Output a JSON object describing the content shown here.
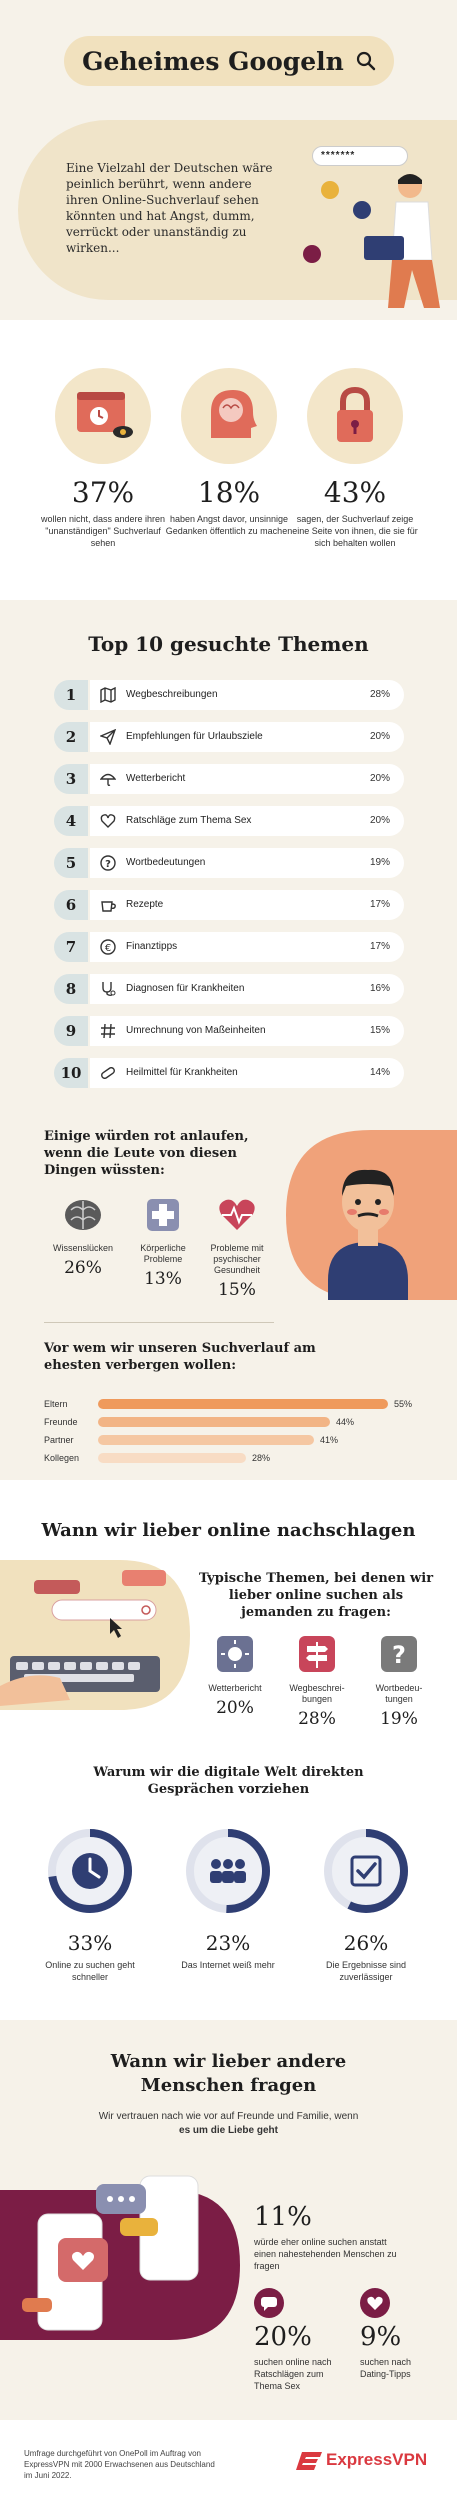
{
  "header": {
    "title": "Geheimes Googeln",
    "search_dots": "*******",
    "intro": "Eine Vielzahl der Deutschen wäre peinlich berührt, wenn andere ihren Online-Suchverlauf sehen könnten und hat Angst, dumm, verrückt oder unanständig zu wirken..."
  },
  "stats": [
    {
      "value": "37%",
      "text": "wollen nicht, dass andere ihren \"unanständigen\" Suchverlauf sehen",
      "icon": "browser-eye-icon"
    },
    {
      "value": "18%",
      "text": "haben Angst davor, unsinnige Gedanken öffentlich zu machen",
      "icon": "head-brain-icon"
    },
    {
      "value": "43%",
      "text": "sagen, der Suchverlauf zeige eine Seite von ihnen, die sie für sich behalten wollen",
      "icon": "padlock-icon"
    }
  ],
  "top10": {
    "title": "Top 10 gesuchte Themen",
    "items": [
      {
        "rank": "1",
        "label": "Wegbeschreibungen",
        "value": "28%",
        "icon": "map-icon"
      },
      {
        "rank": "2",
        "label": "Empfehlungen für Urlaubsziele",
        "value": "20%",
        "icon": "paper-plane-icon"
      },
      {
        "rank": "3",
        "label": "Wetterbericht",
        "value": "20%",
        "icon": "umbrella-icon"
      },
      {
        "rank": "4",
        "label": "Ratschläge zum Thema Sex",
        "value": "20%",
        "icon": "heart-icon"
      },
      {
        "rank": "5",
        "label": "Wortbedeutungen",
        "value": "19%",
        "icon": "question-icon"
      },
      {
        "rank": "6",
        "label": "Rezepte",
        "value": "17%",
        "icon": "cup-icon"
      },
      {
        "rank": "7",
        "label": "Finanztipps",
        "value": "17%",
        "icon": "euro-icon"
      },
      {
        "rank": "8",
        "label": "Diagnosen für Krankheiten",
        "value": "16%",
        "icon": "stethoscope-icon"
      },
      {
        "rank": "9",
        "label": "Umrechnung von Maßeinheiten",
        "value": "15%",
        "icon": "hash-icon"
      },
      {
        "rank": "10",
        "label": "Heilmittel für Krankheiten",
        "value": "14%",
        "icon": "pill-icon"
      }
    ]
  },
  "blush": {
    "title": "Einige würden rot anlaufen, wenn die Leute von diesen Dingen wüssten:",
    "items": [
      {
        "label": "Wissenslücken",
        "value": "26%",
        "icon": "brain-icon"
      },
      {
        "label": "Körperliche Probleme",
        "value": "13%",
        "icon": "medical-cross-icon"
      },
      {
        "label": "Probleme mit psychischer Gesundheit",
        "value": "15%",
        "icon": "heartbeat-icon"
      }
    ]
  },
  "hide": {
    "title": "Vor wem wir unseren Suchverlauf am ehesten verbergen wollen:",
    "rows": [
      {
        "label": "Eltern",
        "value": "55%",
        "pct": 55,
        "color": "#ef9a5c"
      },
      {
        "label": "Freunde",
        "value": "44%",
        "pct": 44,
        "color": "#f2b485"
      },
      {
        "label": "Partner",
        "value": "41%",
        "pct": 41,
        "color": "#f5c7a2"
      },
      {
        "label": "Kollegen",
        "value": "28%",
        "pct": 28,
        "color": "#f8dcc4"
      }
    ]
  },
  "online": {
    "title": "Wann wir lieber online nachschlagen",
    "topics_title": "Typische Themen, bei denen wir lieber online suchen als jemanden zu fragen:",
    "topics": [
      {
        "label": "Wetterbericht",
        "value": "20%",
        "icon": "sun-icon"
      },
      {
        "label": "Wegbeschrei-bungen",
        "value": "28%",
        "icon": "signpost-icon"
      },
      {
        "label": "Wortbedeu-tungen",
        "value": "19%",
        "icon": "question-box-icon"
      }
    ],
    "reasons_title": "Warum wir die digitale Welt direkten Gesprächen vorziehen",
    "reasons": [
      {
        "value": "33%",
        "label": "Online zu suchen geht schneller",
        "pct": 33,
        "icon": "clock-icon"
      },
      {
        "value": "23%",
        "label": "Das Internet weiß mehr",
        "pct": 23,
        "icon": "people-icon"
      },
      {
        "value": "26%",
        "label": "Die Ergebnisse sind zuverlässiger",
        "pct": 26,
        "icon": "checkbox-icon"
      }
    ]
  },
  "people": {
    "title": "Wann wir lieber andere Menschen fragen",
    "intro_a": "Wir vertrauen nach wie vor auf Freunde und Familie, wenn ",
    "intro_b": "es um die Liebe geht",
    "main_value": "11%",
    "main_text": "würde eher online suchen anstatt einen nahestehenden Menschen zu fragen",
    "stats": [
      {
        "value": "20%",
        "text": "suchen online nach Ratschlägen zum Thema Sex",
        "icon": "chat-bubble-icon"
      },
      {
        "value": "9%",
        "text": "suchen nach Dating-Tipps",
        "icon": "heart-circle-icon"
      }
    ]
  },
  "footer": {
    "note": "Umfrage durchgeführt von OnePoll im Auftrag von ExpressVPN mit 2000 Erwachsenen aus Deutschland im Juni 2022.",
    "brand": "ExpressVPN"
  },
  "colors": {
    "accent": "#e07b4f",
    "plum": "#7b1d45",
    "navy": "#2f3e73",
    "cream": "#f6f2e9",
    "sand": "#f1e1be"
  }
}
